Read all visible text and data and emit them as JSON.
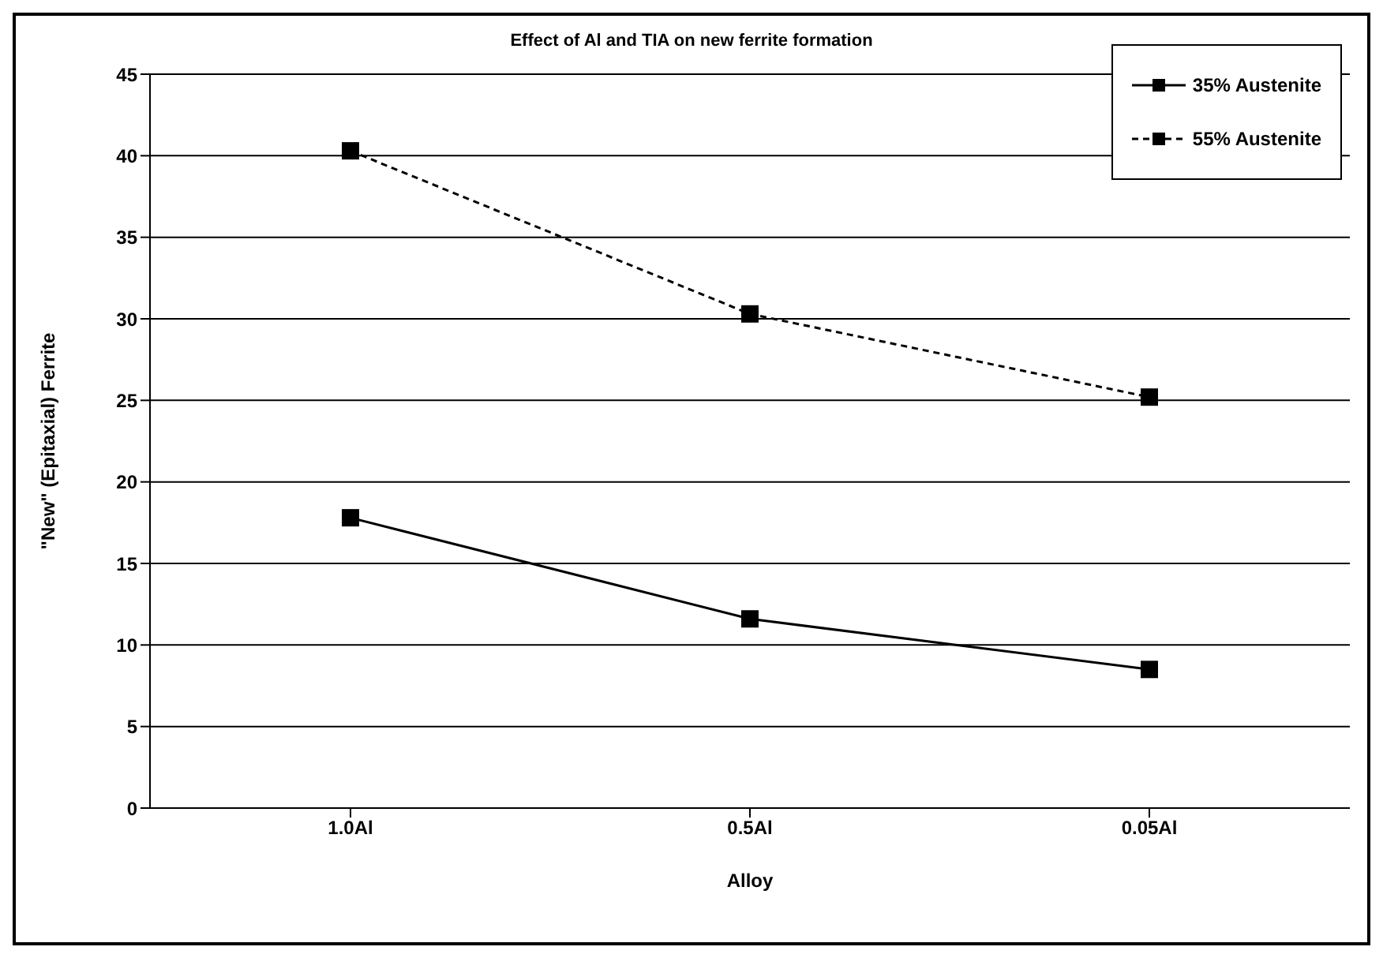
{
  "chart_data": {
    "type": "line",
    "title": "Effect of Al and TIA on new ferrite formation",
    "xlabel": "Alloy",
    "ylabel": "\"New\" (Epitaxial) Ferrite",
    "categories": [
      "1.0Al",
      "0.5Al",
      "0.05Al"
    ],
    "series": [
      {
        "name": "35% Austenite",
        "color": "#000000",
        "values": [
          17.8,
          11.6,
          8.5
        ],
        "line_style": "solid"
      },
      {
        "name": "55% Austenite",
        "color": "#000000",
        "values": [
          40.3,
          30.3,
          25.2
        ],
        "line_style": "dashed"
      }
    ],
    "ylim": [
      0,
      45
    ],
    "yticks": [
      0,
      5,
      10,
      15,
      20,
      25,
      30,
      35,
      40,
      45
    ],
    "grid": "y",
    "legend": "top right",
    "marker": "square"
  }
}
